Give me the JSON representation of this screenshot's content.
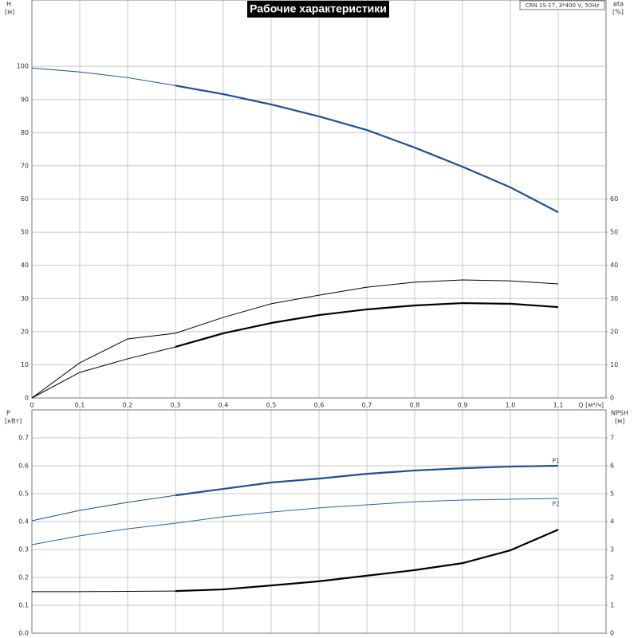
{
  "chart_data": [
    {
      "type": "line",
      "title": "Рабочие характеристики",
      "note": "CRN 1S-17, 3*400 V, 50Hz",
      "y_label": "H",
      "y_unit": "[м]",
      "y2_label": "eta",
      "y2_unit": "[%]",
      "x_label": "Q [м³/ч]",
      "xlim": [
        0,
        1.2
      ],
      "xticks": [
        0,
        {
          "value": 0.1,
          "label": "0,1"
        },
        {
          "value": 0.2,
          "label": "0,2"
        },
        {
          "value": 0.3,
          "label": "0,3"
        },
        {
          "value": 0.4,
          "label": "0,4"
        },
        {
          "value": 0.5,
          "label": "0,5"
        },
        {
          "value": 0.6,
          "label": "0,6"
        },
        {
          "value": 0.7,
          "label": "0,7"
        },
        {
          "value": 0.8,
          "label": "0,8"
        },
        {
          "value": 0.9,
          "label": "0,9"
        },
        {
          "value": 1.0,
          "label": "1,0"
        },
        {
          "value": 1.1,
          "label": "1,1"
        }
      ],
      "ylim": [
        0,
        120
      ],
      "yticks": [
        0,
        10,
        20,
        30,
        40,
        50,
        60,
        70,
        80,
        90,
        100
      ],
      "y2lim": [
        0,
        120
      ],
      "y2ticks": [
        0,
        10,
        20,
        30,
        40,
        50,
        60
      ],
      "grid": true,
      "x": [
        0,
        0.1,
        0.2,
        0.3,
        0.4,
        0.5,
        0.6,
        0.7,
        0.8,
        0.9,
        1.0,
        1.1
      ],
      "series": [
        {
          "color": "#1d4f91",
          "bold_from": 0.3,
          "values": [
            99.5,
            98.3,
            96.6,
            94.2,
            91.6,
            88.5,
            84.9,
            80.8,
            75.5,
            69.7,
            63.5,
            56
          ]
        },
        {
          "color": "#000000",
          "axis": "y2",
          "values": [
            0,
            10.6,
            17.8,
            19.5,
            24.3,
            28.4,
            31,
            33.4,
            34.9,
            35.6,
            35.3,
            34.4
          ]
        },
        {
          "color": "#000000",
          "axis": "y2",
          "bold_from": 0.3,
          "values": [
            0,
            7.7,
            11.8,
            15.4,
            19.5,
            22.6,
            25,
            26.7,
            27.9,
            28.6,
            28.4,
            27.4
          ]
        }
      ]
    },
    {
      "type": "line",
      "y_label": "P",
      "y_unit": "[кВт]",
      "y2_label": "NPSH",
      "y2_unit": "[м]",
      "xlim": [
        0,
        1.2
      ],
      "ylim": [
        0,
        0.8
      ],
      "yticks": [
        {
          "value": 0,
          "label": "0.0"
        },
        0.1,
        0.2,
        0.3,
        0.4,
        0.5,
        0.6,
        0.7
      ],
      "y2lim": [
        0,
        8
      ],
      "y2ticks": [
        0,
        1,
        2,
        3,
        4,
        5,
        6,
        7
      ],
      "grid": true,
      "x": [
        0,
        0.1,
        0.2,
        0.3,
        0.4,
        0.5,
        0.6,
        0.7,
        0.8,
        0.9,
        1.0,
        1.1
      ],
      "series": [
        {
          "name": "P1",
          "color": "#1d4f91",
          "bold_from": 0.3,
          "label_position": "above",
          "values": [
            0.403,
            0.44,
            0.469,
            0.494,
            0.517,
            0.54,
            0.554,
            0.571,
            0.583,
            0.591,
            0.597,
            0.6
          ]
        },
        {
          "name": "P2",
          "color": "#2a64a4",
          "label_position": "below",
          "values": [
            0.317,
            0.349,
            0.374,
            0.394,
            0.417,
            0.434,
            0.449,
            0.46,
            0.471,
            0.477,
            0.48,
            0.483
          ]
        },
        {
          "color": "#000000",
          "axis": "y2",
          "bold_from": 0.3,
          "values": [
            1.49,
            1.49,
            1.5,
            1.51,
            1.57,
            1.71,
            1.86,
            2.06,
            2.26,
            2.51,
            2.97,
            3.71
          ]
        }
      ]
    }
  ]
}
